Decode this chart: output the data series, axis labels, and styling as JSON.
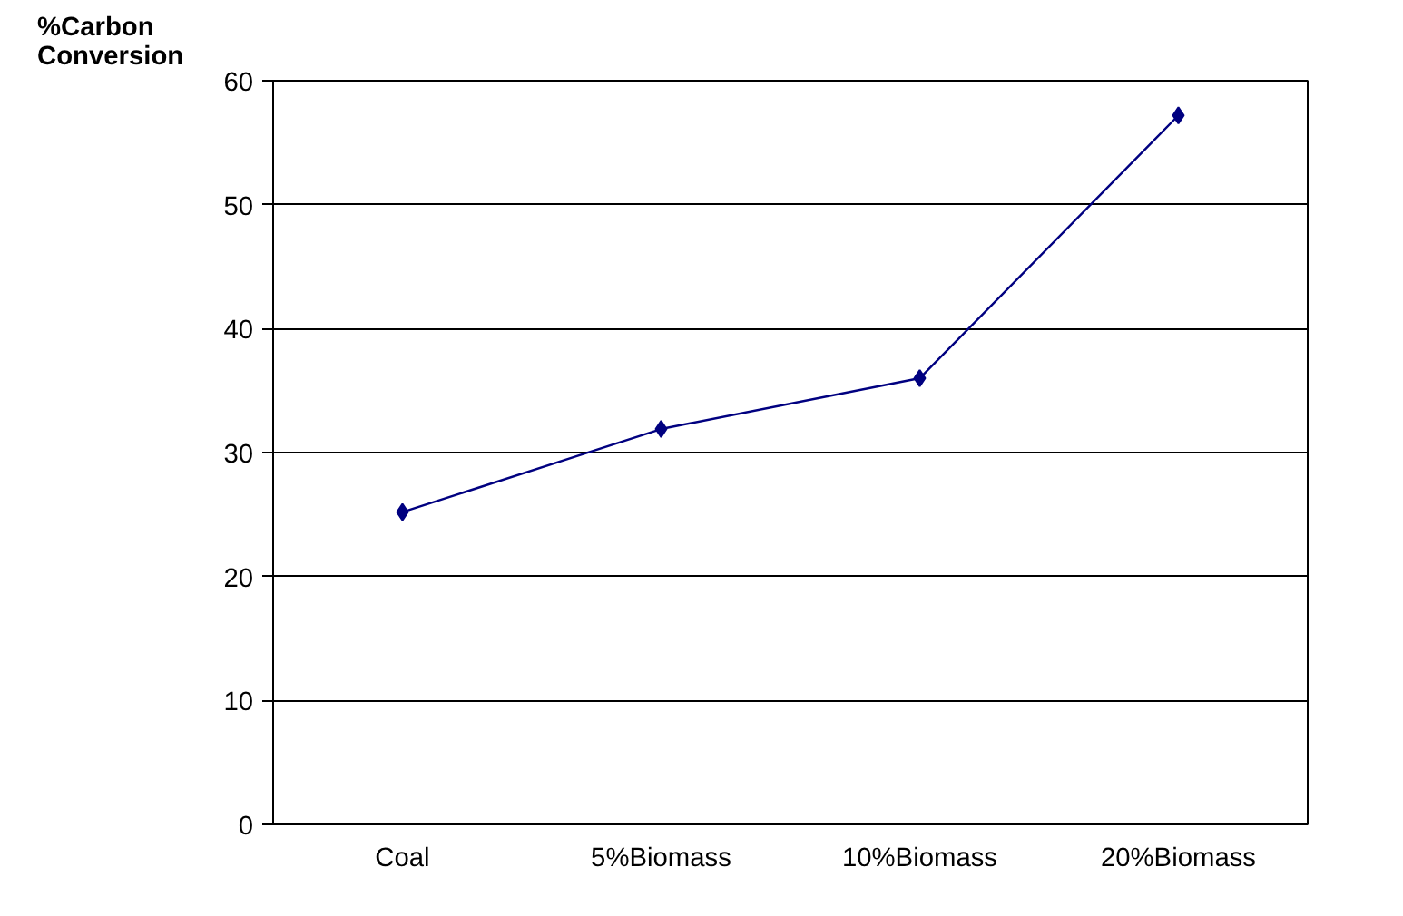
{
  "chart_data": {
    "type": "line",
    "ylabel": "%Carbon Conversion",
    "categories": [
      "Coal",
      "5%Biomass",
      "10%Biomass",
      "20%Biomass"
    ],
    "series": [
      {
        "color": "#000080",
        "values": [
          25.2,
          31.9,
          36.0,
          57.2
        ]
      }
    ],
    "ylim": [
      0,
      60
    ],
    "yticks": [
      0,
      10,
      20,
      30,
      40,
      50,
      60
    ],
    "grid": "y",
    "marker": "diamond",
    "line_style": "solid"
  }
}
